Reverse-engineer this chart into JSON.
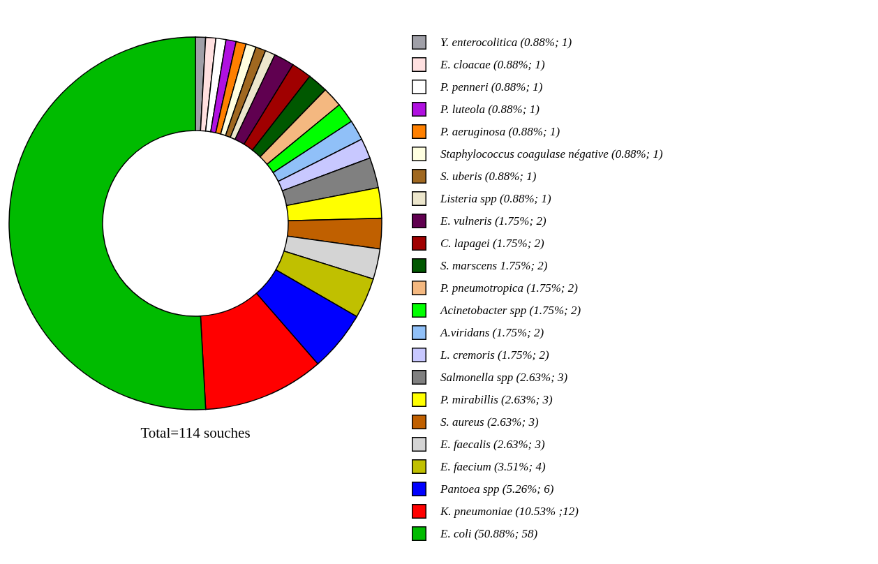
{
  "chart_data": {
    "type": "donut",
    "legend": "right",
    "annotations": [
      "Total=114 souches"
    ],
    "categories": [
      "Y. enterocolitica (0.88%; 1)",
      "E. cloacae (0.88%; 1)",
      "P. penneri (0.88%; 1)",
      "P. luteola (0.88%; 1)",
      "P. aeruginosa (0.88%; 1)",
      "Staphylococcus coagulase négative (0.88%; 1)",
      "S. uberis (0.88%; 1)",
      "Listeria spp (0.88%; 1)",
      "E. vulneris (1.75%; 2)",
      "C. lapagei (1.75%; 2)",
      "S. marscens 1.75%; 2)",
      "P. pneumotropica (1.75%; 2)",
      "Acinetobacter spp (1.75%; 2)",
      "A.viridans (1.75%; 2)",
      "L. cremoris (1.75%; 2)",
      "Salmonella spp (2.63%; 3)",
      "P. mirabillis (2.63%; 3)",
      "S. aureus (2.63%; 3)",
      "E. faecalis (2.63%; 3)",
      "E. faecium (3.51%; 4)",
      "Pantoea spp (5.26%; 6)",
      "K. pneumoniae (10.53% ;12)",
      "E. coli (50.88%; 58)"
    ],
    "values": [
      1,
      1,
      1,
      1,
      1,
      1,
      1,
      1,
      2,
      2,
      2,
      2,
      2,
      2,
      2,
      3,
      3,
      3,
      3,
      4,
      6,
      12,
      58
    ],
    "colors": [
      "#a0a0a8",
      "#ffe0e0",
      "#ffffff",
      "#b010e0",
      "#ff8000",
      "#ffffe0",
      "#a06820",
      "#ece6cc",
      "#600050",
      "#a00000",
      "#005800",
      "#f4b880",
      "#00ff00",
      "#90c0f8",
      "#c8c8ff",
      "#808080",
      "#ffff00",
      "#c06000",
      "#d4d4d4",
      "#c0c000",
      "#0000ff",
      "#ff0000",
      "#00bb00"
    ]
  }
}
